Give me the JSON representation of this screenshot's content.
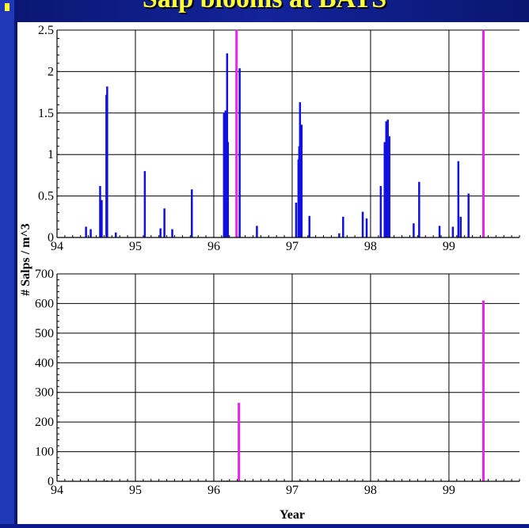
{
  "title": "Salp blooms at BATS",
  "colors": {
    "series": "#1010e0",
    "highlight": "#ee22ee",
    "grid": "#000000",
    "title": "#ffff33"
  },
  "y_label": "# Salps / m^3",
  "x_label": "Year",
  "chart_data": [
    {
      "type": "bar",
      "xlim": [
        94,
        99.9
      ],
      "ylim": [
        0,
        2.5
      ],
      "x_ticks": [
        94,
        95,
        96,
        97,
        98,
        99
      ],
      "y_ticks": [
        0,
        0.5,
        1,
        1.5,
        2,
        2.5
      ],
      "x_tick_labels": [
        "94",
        "95",
        "96",
        "97",
        "98",
        "99"
      ],
      "y_tick_labels": [
        "0",
        "0.5",
        "1",
        "1.5",
        "2",
        "2.5"
      ],
      "grid": true,
      "series": [
        {
          "color_role": "series",
          "x": [
            94.37,
            94.43,
            94.55,
            94.57,
            94.63,
            94.64,
            94.75,
            95.12,
            95.32,
            95.37,
            95.47,
            95.72,
            96.13,
            96.15,
            96.17,
            96.18,
            96.33,
            96.55,
            97.05,
            97.08,
            97.09,
            97.1,
            97.12,
            97.22,
            97.6,
            97.65,
            97.9,
            97.95,
            98.13,
            98.18,
            98.2,
            98.22,
            98.24,
            98.55,
            98.62,
            98.88,
            99.05,
            99.12,
            99.15,
            99.25
          ],
          "values": [
            0.13,
            0.1,
            0.62,
            0.45,
            1.72,
            1.82,
            0.06,
            0.8,
            0.11,
            0.35,
            0.1,
            0.58,
            1.5,
            1.53,
            2.22,
            1.15,
            2.04,
            0.14,
            0.42,
            0.94,
            1.1,
            1.63,
            1.36,
            0.26,
            0.05,
            0.25,
            0.31,
            0.23,
            0.62,
            1.15,
            1.4,
            1.42,
            1.22,
            0.17,
            0.67,
            0.14,
            0.13,
            0.92,
            0.25,
            0.53
          ]
        },
        {
          "color_role": "highlight",
          "x": [
            96.29,
            99.44
          ],
          "values": [
            2.5,
            2.5
          ]
        }
      ]
    },
    {
      "type": "bar",
      "xlim": [
        94,
        99.9
      ],
      "ylim": [
        0,
        700
      ],
      "x_ticks": [
        94,
        95,
        96,
        97,
        98,
        99
      ],
      "y_ticks": [
        0,
        100,
        200,
        300,
        400,
        500,
        600,
        700
      ],
      "x_tick_labels": [
        "94",
        "95",
        "96",
        "97",
        "98",
        "99"
      ],
      "y_tick_labels": [
        "0",
        "100",
        "200",
        "300",
        "400",
        "500",
        "600",
        "700"
      ],
      "grid": true,
      "series": [
        {
          "color_role": "series",
          "x": [
            94.37,
            94.43,
            94.55,
            94.63,
            94.64,
            95.12,
            95.37,
            95.72,
            96.13,
            96.17,
            96.33,
            97.08,
            97.1,
            97.12,
            97.22,
            97.65,
            97.9,
            98.18,
            98.2,
            98.22,
            98.62,
            98.88,
            99.12,
            99.25
          ],
          "values": [
            0.5,
            0.5,
            1,
            2,
            2.5,
            1,
            0.5,
            1,
            2,
            2.5,
            2,
            1.5,
            2,
            2,
            0.5,
            0.5,
            0.5,
            1.5,
            2,
            2,
            1,
            0.5,
            1,
            0.5
          ]
        },
        {
          "color_role": "highlight",
          "x": [
            96.32,
            99.44
          ],
          "values": [
            265,
            610
          ]
        }
      ]
    }
  ]
}
